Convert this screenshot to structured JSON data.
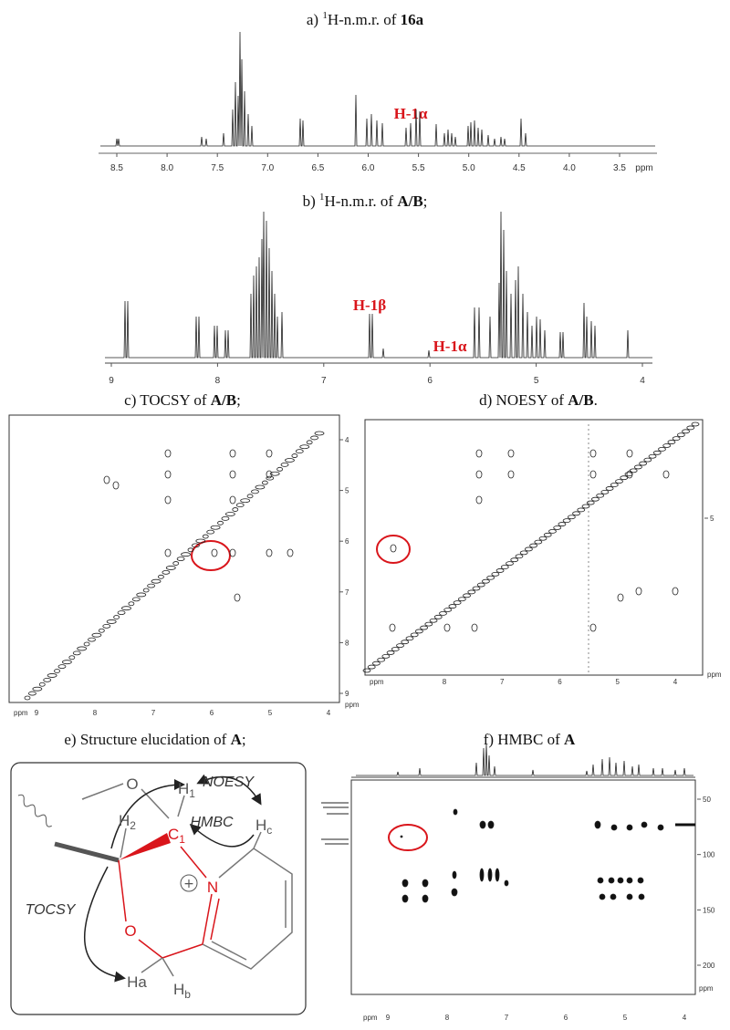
{
  "panels": {
    "a": {
      "title": {
        "prefix": "a) ",
        "sup": "1",
        "text": "H-n.m.r. of ",
        "bold": "16a"
      },
      "annotation": "H-1α",
      "xticks": [
        "8.5",
        "8.0",
        "7.5",
        "7.0",
        "6.5",
        "6.0",
        "5.5",
        "5.0",
        "4.5",
        "4.0",
        "3.5"
      ],
      "unit": "ppm"
    },
    "b": {
      "title": {
        "prefix": "b) ",
        "sup": "1",
        "text": "H-n.m.r. of ",
        "bold": "A/B",
        "suffix": ";"
      },
      "annotations": [
        "H-1β",
        "H-1α"
      ],
      "xticks": [
        "9",
        "8",
        "7",
        "6",
        "5",
        "4"
      ]
    },
    "c": {
      "title": {
        "prefix": "c) TOCSY of ",
        "bold": "A/B",
        "suffix": ";"
      },
      "xunit": "ppm",
      "xticks": [
        "9",
        "8",
        "7",
        "6",
        "5",
        "4"
      ],
      "yticks": [
        "4",
        "5",
        "6",
        "7",
        "8",
        "9"
      ],
      "yunit": "ppm"
    },
    "d": {
      "title": {
        "prefix": "d) NOESY of ",
        "bold": "A/B",
        "suffix": "."
      },
      "xunit": "ppm",
      "xticks": [
        "8",
        "7",
        "6",
        "5",
        "4"
      ],
      "yticks": [
        "5"
      ],
      "yunit": "ppm"
    },
    "e": {
      "title": {
        "prefix": "e) Structure elucidation of ",
        "bold": "A",
        "suffix": ";"
      },
      "labels": {
        "o_top": "O",
        "h2": "H",
        "h2_sub": "2",
        "h1": "H",
        "h1_sub": "1",
        "c1": "C",
        "c1_sub": "1",
        "noesy": "NOESY",
        "hmbc": "HMBC",
        "hc": "H",
        "hc_sub": "c",
        "n": "N",
        "plus": "+",
        "tocsy": "TOCSY",
        "o_low": "O",
        "ha": "Ha",
        "hb": "H",
        "hb_sub": "b"
      }
    },
    "f": {
      "title": {
        "prefix": "f) HMBC of ",
        "bold": "A"
      },
      "xunit": "ppm",
      "xticks": [
        "9",
        "8",
        "7",
        "6",
        "5",
        "4"
      ],
      "yticks": [
        "50",
        "100",
        "150",
        "200"
      ],
      "yunit": "ppm"
    }
  }
}
